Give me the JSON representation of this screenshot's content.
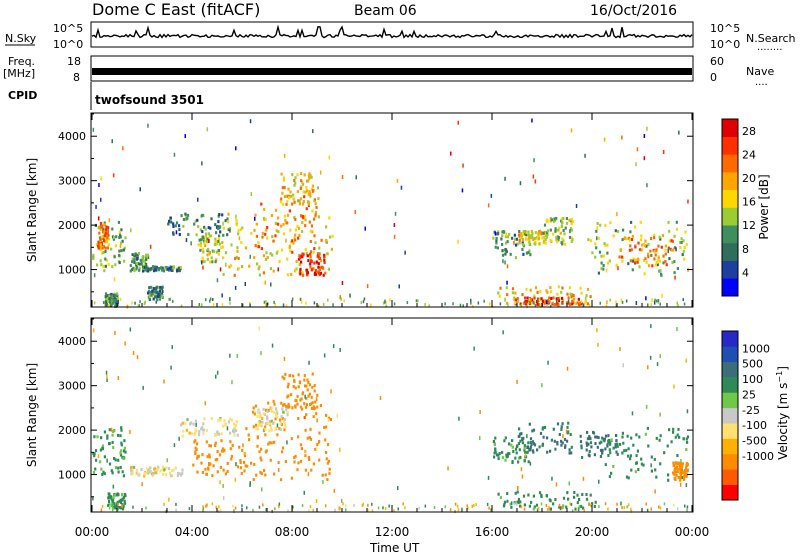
{
  "header": {
    "title": "Dome C East (fitACF)",
    "beam": "Beam 06",
    "date": "16/Oct/2016"
  },
  "nsky_panel": {
    "label": "N.Sky",
    "left_top": "10^5",
    "left_bottom": "10^0",
    "right_top": "10^5",
    "right_bottom": "10^0",
    "right_label": "N.Search",
    "right_dots": "........"
  },
  "freq_panel": {
    "label_top": "Freq.",
    "label_unit": "[MHz]",
    "left_top": "18",
    "left_bottom": "8",
    "right_top": "60",
    "right_bottom": "0",
    "right_label": "Nave",
    "right_dots": "...."
  },
  "cpid_panel": {
    "label": "CPID",
    "program": "twofsound 3501"
  },
  "colors": {
    "power_scale": [
      "#0000ff",
      "#1f3fa0",
      "#2e6e5a",
      "#3e8e5e",
      "#9acd32",
      "#ffd700",
      "#ffa500",
      "#ff6a00",
      "#ff3000",
      "#e00000"
    ],
    "velocity_scale": [
      "#ff0000",
      "#ff5a00",
      "#ff8c00",
      "#ffb000",
      "#ffe070",
      "#c8c8c8",
      "#6ec84a",
      "#2e8b57",
      "#3c6e7a",
      "#1e50b4",
      "#2828c8"
    ]
  },
  "chart_data": [
    {
      "type": "heatmap",
      "panel": "power",
      "xlabel": "",
      "ylabel": "Slant Range [km]",
      "x_ticks": [
        "00:00",
        "04:00",
        "08:00",
        "12:00",
        "16:00",
        "20:00",
        "00:00"
      ],
      "xlim_hours": [
        0,
        24
      ],
      "y_ticks": [
        1000,
        2000,
        3000,
        4000
      ],
      "ylim": [
        180,
        4500
      ],
      "colorbar_label": "Power [dB]",
      "colorbar_ticks": [
        4,
        8,
        12,
        16,
        20,
        24,
        28
      ],
      "colorbar_range": [
        0,
        30
      ],
      "regions": [
        {
          "t0": 0.0,
          "t1": 1.3,
          "r0": 1000,
          "r1": 2100,
          "value": 12
        },
        {
          "t0": 0.2,
          "t1": 0.6,
          "r0": 1500,
          "r1": 2100,
          "value": 22
        },
        {
          "t0": 0.5,
          "t1": 1.0,
          "r0": 200,
          "r1": 500,
          "value": 10
        },
        {
          "t0": 1.5,
          "t1": 2.2,
          "r0": 1000,
          "r1": 1400,
          "value": 10
        },
        {
          "t0": 2.0,
          "t1": 3.6,
          "r0": 1000,
          "r1": 1100,
          "value": 9
        },
        {
          "t0": 2.2,
          "t1": 2.8,
          "r0": 350,
          "r1": 650,
          "value": 9
        },
        {
          "t0": 3.0,
          "t1": 5.5,
          "r0": 1800,
          "r1": 2300,
          "value": 9
        },
        {
          "t0": 4.2,
          "t1": 5.2,
          "r0": 1200,
          "r1": 1800,
          "value": 14
        },
        {
          "t0": 5.2,
          "t1": 9.6,
          "r0": 900,
          "r1": 2300,
          "value": 17
        },
        {
          "t0": 6.5,
          "t1": 9.2,
          "r0": 1400,
          "r1": 2700,
          "value": 22
        },
        {
          "t0": 7.5,
          "t1": 9.0,
          "r0": 2500,
          "r1": 3200,
          "value": 18
        },
        {
          "t0": 8.2,
          "t1": 9.3,
          "r0": 900,
          "r1": 1400,
          "value": 26
        },
        {
          "t0": 16.0,
          "t1": 17.5,
          "r0": 1300,
          "r1": 1900,
          "value": 10
        },
        {
          "t0": 17.0,
          "t1": 18.2,
          "r0": 1600,
          "r1": 1900,
          "value": 17
        },
        {
          "t0": 18.0,
          "t1": 19.2,
          "r0": 1600,
          "r1": 2200,
          "value": 14
        },
        {
          "t0": 16.2,
          "t1": 20.0,
          "r0": 230,
          "r1": 650,
          "value": 18
        },
        {
          "t0": 16.8,
          "t1": 19.8,
          "r0": 230,
          "r1": 400,
          "value": 26
        },
        {
          "t0": 19.8,
          "t1": 23.8,
          "r0": 900,
          "r1": 2100,
          "value": 13
        },
        {
          "t0": 21.0,
          "t1": 23.2,
          "r0": 1100,
          "r1": 1800,
          "value": 21
        }
      ]
    },
    {
      "type": "heatmap",
      "panel": "velocity",
      "xlabel": "Time UT",
      "ylabel": "Slant Range [km]",
      "x_ticks": [
        "00:00",
        "04:00",
        "08:00",
        "12:00",
        "16:00",
        "20:00",
        "00:00"
      ],
      "xlim_hours": [
        0,
        24
      ],
      "y_ticks": [
        1000,
        2000,
        3000,
        4000
      ],
      "ylim": [
        180,
        4500
      ],
      "colorbar_label": "Velocity [m s^-1]",
      "colorbar_ticks": [
        1000,
        500,
        100,
        25,
        -25,
        -100,
        -500,
        -1000
      ],
      "regions": [
        {
          "t0": 0.0,
          "t1": 1.3,
          "r0": 1000,
          "r1": 2100,
          "value": 150
        },
        {
          "t0": 0.6,
          "t1": 1.3,
          "r0": 250,
          "r1": 600,
          "value": 150
        },
        {
          "t0": 1.5,
          "t1": 3.6,
          "r0": 1000,
          "r1": 1200,
          "value": 0
        },
        {
          "t0": 3.5,
          "t1": 5.8,
          "r0": 1900,
          "r1": 2300,
          "value": 0
        },
        {
          "t0": 4.0,
          "t1": 6.0,
          "r0": 1000,
          "r1": 1800,
          "value": -300
        },
        {
          "t0": 6.0,
          "t1": 9.6,
          "r0": 900,
          "r1": 2700,
          "value": -300
        },
        {
          "t0": 7.5,
          "t1": 9.0,
          "r0": 2500,
          "r1": 3300,
          "value": -300
        },
        {
          "t0": 6.5,
          "t1": 7.8,
          "r0": 2000,
          "r1": 2600,
          "value": 0
        },
        {
          "t0": 16.0,
          "t1": 17.5,
          "r0": 1300,
          "r1": 1900,
          "value": 200
        },
        {
          "t0": 17.0,
          "t1": 19.2,
          "r0": 1500,
          "r1": 2200,
          "value": 600
        },
        {
          "t0": 16.2,
          "t1": 20.2,
          "r0": 230,
          "r1": 650,
          "value": 200
        },
        {
          "t0": 19.5,
          "t1": 21.0,
          "r0": 1400,
          "r1": 2000,
          "value": 600
        },
        {
          "t0": 20.5,
          "t1": 23.8,
          "r0": 900,
          "r1": 2100,
          "value": 200
        },
        {
          "t0": 23.2,
          "t1": 23.8,
          "r0": 900,
          "r1": 1300,
          "value": -300
        }
      ]
    }
  ]
}
